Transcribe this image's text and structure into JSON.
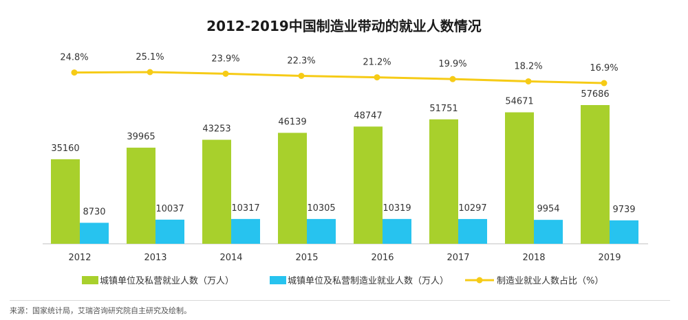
{
  "chart_data": {
    "type": "bar",
    "title": "2012-2019中国制造业带动的就业人数情况",
    "categories": [
      "2012",
      "2013",
      "2014",
      "2015",
      "2016",
      "2017",
      "2018",
      "2019"
    ],
    "series": [
      {
        "name": "城镇单位及私营就业人数（万人）",
        "type": "bar",
        "color": "#a8d02c",
        "values": [
          35160,
          39965,
          43253,
          46139,
          48747,
          51751,
          54671,
          57686
        ]
      },
      {
        "name": "城镇单位及私营制造业就业人数（万人）",
        "type": "bar",
        "color": "#27c3ef",
        "values": [
          8730,
          10037,
          10317,
          10305,
          10319,
          10297,
          9954,
          9739
        ]
      },
      {
        "name": "制造业就业人数占比（%）",
        "type": "line",
        "color": "#f6cb16",
        "values": [
          24.8,
          25.1,
          23.9,
          22.3,
          21.2,
          19.9,
          18.2,
          16.9
        ],
        "labels": [
          "24.8%",
          "25.1%",
          "23.9%",
          "22.3%",
          "21.2%",
          "19.9%",
          "18.2%",
          "16.9%"
        ]
      }
    ],
    "ylim": [
      0,
      70000
    ],
    "ylim_secondary": [
      0,
      45
    ],
    "legend_position": "bottom",
    "grid": false
  },
  "source": "来源：国家统计局，艾瑞咨询研究院自主研究及绘制。"
}
